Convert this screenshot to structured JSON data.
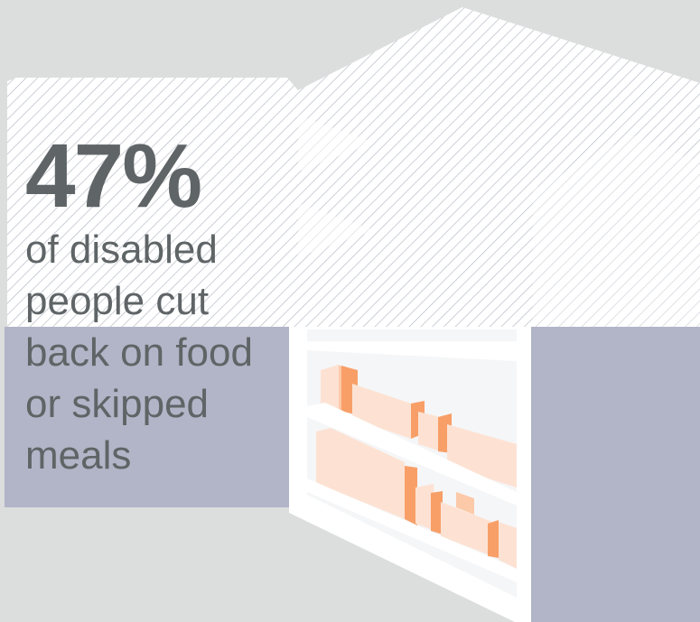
{
  "statistic": {
    "value": "47%",
    "caption_lines": [
      "of disabled",
      "people cut",
      "back on food",
      "or skipped",
      "meals"
    ]
  },
  "illustration": {
    "subject": "store-shelf-illustration",
    "colors": {
      "background": "#dcdedd",
      "panel": "#b2b5c7",
      "hatch_line": "#b8bcc6",
      "shelf": "#ffffff",
      "product_light": "#fde2d3",
      "product_mid": "#fcc9a9",
      "product_dark": "#f89f68",
      "text": "#5f6466"
    }
  }
}
